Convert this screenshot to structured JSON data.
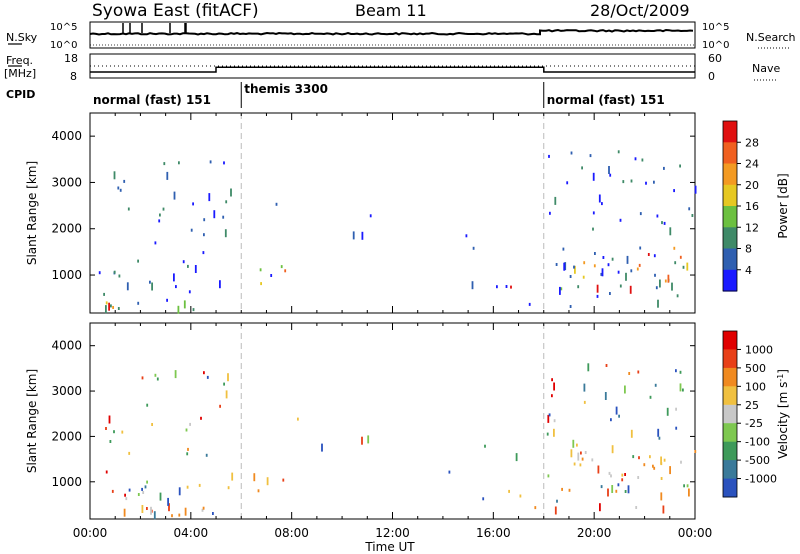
{
  "header": {
    "station": "Syowa East (fitACF)",
    "beam": "Beam 11",
    "date": "28/Oct/2009"
  },
  "strips": {
    "nsky_label": "N.Sky",
    "nsky_ticks": [
      "10^5",
      "10^0"
    ],
    "nsearch_label": "N.Search",
    "nsearch_ticks": [
      "10^5",
      "10^0"
    ],
    "freq_label": "Freq.",
    "freq_unit": "[MHz]",
    "freq_ticks": [
      "18",
      "8"
    ],
    "nave_label": "Nave",
    "nave_ticks": [
      "60",
      "0"
    ],
    "cpid_label": "CPID",
    "cpid_segments": [
      {
        "label": "normal (fast) 151",
        "start_hour": 0,
        "end_hour": 6
      },
      {
        "label": "themis 3300",
        "start_hour": 6,
        "end_hour": 18
      },
      {
        "label": "normal (fast) 151",
        "start_hour": 18,
        "end_hour": 24
      }
    ],
    "freq_steps_mhz": [
      {
        "from_hour": 0,
        "to_hour": 5,
        "value": 10.5
      },
      {
        "from_hour": 5,
        "to_hour": 18,
        "value": 12.5
      },
      {
        "from_hour": 18,
        "to_hour": 24,
        "value": 10.5
      }
    ]
  },
  "chart_data": [
    {
      "type": "heatmap",
      "name": "power",
      "ylabel": "Slant Range [km]",
      "yticks": [
        "1000",
        "2000",
        "3000",
        "4000"
      ],
      "ylim": [
        180,
        4500
      ],
      "xlim": [
        0,
        24
      ],
      "colorbar_label": "Power [dB]",
      "colorbar_ticks": [
        "4",
        "8",
        "12",
        "16",
        "20",
        "24",
        "28"
      ],
      "colorbar_range": [
        0,
        30
      ],
      "colors": [
        "#1a1aff",
        "#2f5fb0",
        "#3f8a68",
        "#6cc040",
        "#e6c822",
        "#f39a22",
        "#f06020",
        "#e01010"
      ]
    },
    {
      "type": "heatmap",
      "name": "velocity",
      "ylabel": "Slant Range [km]",
      "yticks": [
        "1000",
        "2000",
        "3000",
        "4000"
      ],
      "ylim": [
        180,
        4500
      ],
      "xlim": [
        0,
        24
      ],
      "xlabel": "Time UT",
      "xticks": [
        "00:00",
        "04:00",
        "08:00",
        "12:00",
        "16:00",
        "20:00",
        "00:00"
      ],
      "colorbar_label": "Velocity [m s",
      "colorbar_label_sup": "-1",
      "colorbar_label_tail": "]",
      "colorbar_ticks": [
        "1000",
        "500",
        "100",
        "25",
        "-25",
        "-100",
        "-500",
        "-1000"
      ],
      "colors": [
        "#2a52be",
        "#3a7a9a",
        "#3e9a5a",
        "#7ec850",
        "#c8c8c8",
        "#f0c040",
        "#f08a20",
        "#e84018",
        "#e00000"
      ]
    }
  ],
  "scatter_regions": [
    {
      "t0": 0.5,
      "t1": 5.6,
      "r0": 250,
      "r1": 3500,
      "density": 0.35,
      "bias": 0
    },
    {
      "t0": 0.2,
      "t1": 5.2,
      "r0": 250,
      "r1": 500,
      "density": 0.9,
      "bias": 1
    },
    {
      "t0": 0.2,
      "t1": 3.5,
      "r0": 600,
      "r1": 1100,
      "density": 0.55,
      "bias": 0
    },
    {
      "t0": 5.6,
      "t1": 8.0,
      "r0": 750,
      "r1": 1200,
      "density": 0.75,
      "bias": 1
    },
    {
      "t0": 6.5,
      "t1": 8.5,
      "r0": 2200,
      "r1": 2600,
      "density": 0.25,
      "bias": 0
    },
    {
      "t0": 8.5,
      "t1": 11.2,
      "r0": 1750,
      "r1": 2300,
      "density": 0.35,
      "bias": 0
    },
    {
      "t0": 14.0,
      "t1": 17.0,
      "r0": 500,
      "r1": 2000,
      "density": 0.12,
      "bias": 0
    },
    {
      "t0": 15.6,
      "t1": 17.2,
      "r0": 600,
      "r1": 800,
      "density": 0.85,
      "bias": 1
    },
    {
      "t0": 17.2,
      "t1": 18.0,
      "r0": 300,
      "r1": 450,
      "density": 0.7,
      "bias": 1
    },
    {
      "t0": 18.1,
      "t1": 24.0,
      "r0": 300,
      "r1": 3700,
      "density": 0.4,
      "bias": 0
    },
    {
      "t0": 18.6,
      "t1": 24.0,
      "r0": 700,
      "r1": 1700,
      "density": 0.75,
      "bias": 1
    },
    {
      "t0": 21.3,
      "t1": 22.8,
      "r0": 280,
      "r1": 450,
      "density": 0.8,
      "bias": 1
    }
  ]
}
